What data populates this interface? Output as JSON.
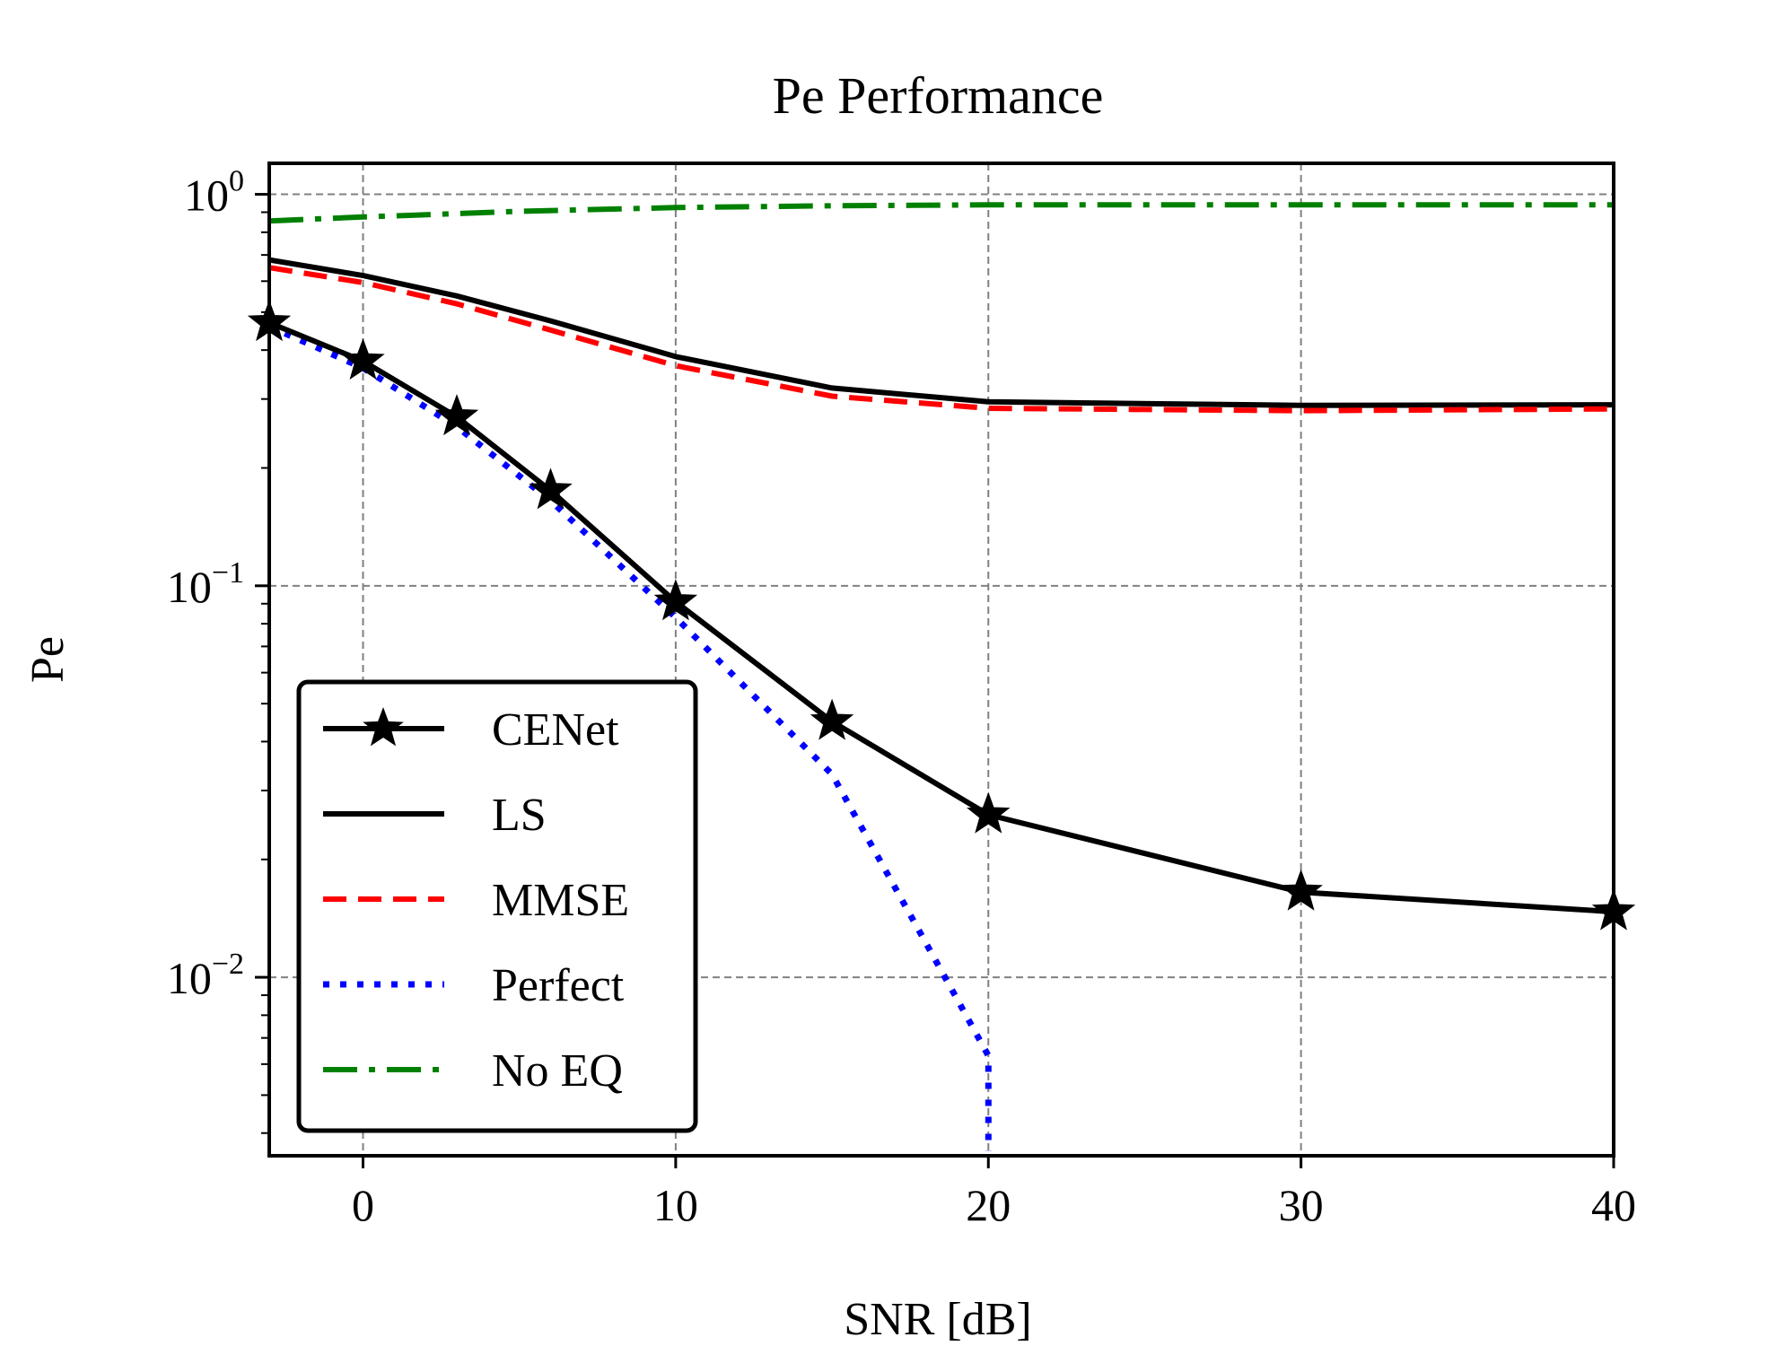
{
  "chart_data": {
    "type": "line",
    "title": "Pe  Performance",
    "xlabel": "SNR [dB]",
    "ylabel": "Pe",
    "xlim": [
      -3,
      40
    ],
    "ylim": [
      0.0035,
      1.2
    ],
    "yscale": "log",
    "grid": true,
    "legend_position": "lower-left",
    "x_ticks": [
      0,
      10,
      20,
      30,
      40
    ],
    "x_tick_labels": [
      "0",
      "10",
      "20",
      "30",
      "40"
    ],
    "y_ticks": [
      {
        "value": 1,
        "base": "10",
        "exp": "0"
      },
      {
        "value": 0.1,
        "base": "10",
        "exp": "−1"
      },
      {
        "value": 0.01,
        "base": "10",
        "exp": "−2"
      }
    ],
    "series": [
      {
        "name": "CENet",
        "color": "#000000",
        "style": "solid",
        "marker": "star",
        "x": [
          -3,
          0,
          3,
          6,
          10,
          15,
          20,
          30,
          40
        ],
        "y": [
          0.47,
          0.375,
          0.27,
          0.175,
          0.091,
          0.045,
          0.026,
          0.0165,
          0.0147
        ]
      },
      {
        "name": "LS",
        "color": "#000000",
        "style": "solid",
        "marker": "none",
        "x": [
          -3,
          0,
          3,
          6,
          10,
          15,
          20,
          30,
          40
        ],
        "y": [
          0.68,
          0.62,
          0.55,
          0.475,
          0.385,
          0.32,
          0.295,
          0.289,
          0.29
        ]
      },
      {
        "name": "MMSE",
        "color": "#ff0000",
        "style": "dashed",
        "marker": "none",
        "x": [
          -3,
          0,
          3,
          6,
          10,
          15,
          20,
          30,
          40
        ],
        "y": [
          0.65,
          0.595,
          0.525,
          0.45,
          0.365,
          0.305,
          0.284,
          0.28,
          0.283
        ]
      },
      {
        "name": "Perfect",
        "color": "#0000ff",
        "style": "dotted",
        "marker": "none",
        "x": [
          -3,
          0,
          3,
          6,
          10,
          15,
          19,
          20,
          20
        ],
        "y": [
          0.46,
          0.36,
          0.255,
          0.165,
          0.083,
          0.033,
          0.0088,
          0.0063,
          0.0036
        ]
      },
      {
        "name": "No EQ",
        "color": "#008000",
        "style": "dashdot",
        "marker": "none",
        "x": [
          -3,
          0,
          5,
          10,
          15,
          20,
          30,
          40
        ],
        "y": [
          0.855,
          0.875,
          0.905,
          0.925,
          0.935,
          0.94,
          0.94,
          0.94
        ]
      }
    ]
  }
}
